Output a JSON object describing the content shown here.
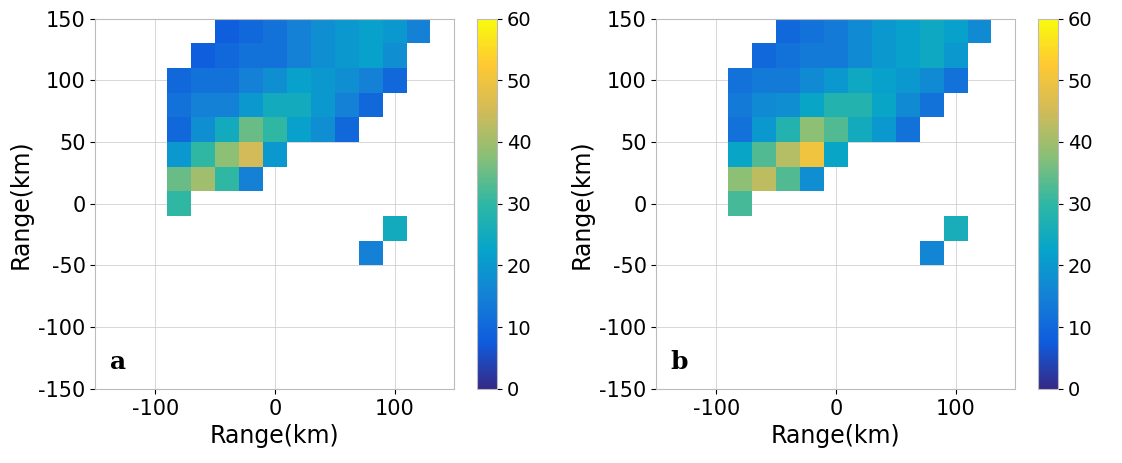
{
  "chart_data": [
    {
      "type": "heatmap",
      "annotation": "a",
      "xlabel": "Range(km)",
      "ylabel": "Range(km)",
      "xlim": [
        -150,
        150
      ],
      "ylim": [
        -150,
        150
      ],
      "xticks": [
        -100,
        0,
        100
      ],
      "yticks": [
        -150,
        -100,
        -50,
        0,
        50,
        100,
        150
      ],
      "grid": true,
      "x": [
        -140,
        -120,
        -100,
        -80,
        -60,
        -40,
        -20,
        0,
        20,
        40,
        60,
        80,
        100,
        120,
        140
      ],
      "y": [
        140,
        120,
        100,
        80,
        60,
        40,
        20,
        0,
        -20,
        -40,
        -60,
        -80,
        -100,
        -120,
        -140
      ],
      "cells": [
        [
          null,
          null,
          null,
          null,
          null,
          8,
          10,
          12,
          15,
          18,
          20,
          22,
          20,
          15,
          null
        ],
        [
          null,
          null,
          null,
          null,
          8,
          10,
          12,
          12,
          15,
          18,
          20,
          22,
          18,
          null,
          null
        ],
        [
          null,
          null,
          null,
          10,
          12,
          12,
          15,
          18,
          22,
          20,
          18,
          15,
          10,
          null,
          null
        ],
        [
          null,
          null,
          null,
          12,
          15,
          15,
          20,
          25,
          25,
          20,
          15,
          10,
          null,
          null,
          null
        ],
        [
          null,
          null,
          null,
          10,
          18,
          25,
          35,
          30,
          22,
          18,
          10,
          null,
          null,
          null,
          null
        ],
        [
          null,
          null,
          null,
          20,
          30,
          38,
          45,
          20,
          null,
          null,
          null,
          null,
          null,
          null,
          null
        ],
        [
          null,
          null,
          null,
          35,
          40,
          30,
          15,
          null,
          null,
          null,
          null,
          null,
          null,
          null,
          null
        ],
        [
          null,
          null,
          null,
          30,
          null,
          null,
          null,
          null,
          null,
          null,
          null,
          null,
          null,
          null,
          null
        ],
        [
          null,
          null,
          null,
          null,
          null,
          null,
          null,
          null,
          null,
          null,
          null,
          null,
          25,
          null,
          null
        ],
        [
          null,
          null,
          null,
          null,
          null,
          null,
          null,
          null,
          null,
          null,
          null,
          15,
          null,
          null,
          null
        ],
        [
          null,
          null,
          null,
          null,
          null,
          null,
          null,
          null,
          null,
          null,
          null,
          null,
          null,
          null,
          null
        ],
        [
          null,
          null,
          null,
          null,
          null,
          null,
          null,
          null,
          null,
          null,
          null,
          null,
          null,
          null,
          null
        ],
        [
          null,
          null,
          null,
          null,
          null,
          null,
          null,
          null,
          null,
          null,
          null,
          null,
          null,
          null,
          null
        ],
        [
          null,
          null,
          null,
          null,
          null,
          null,
          null,
          null,
          null,
          null,
          null,
          null,
          null,
          null,
          null
        ],
        [
          null,
          null,
          null,
          null,
          null,
          null,
          null,
          null,
          null,
          null,
          null,
          null,
          null,
          null,
          null
        ]
      ],
      "colorbar_range": [
        0,
        60
      ],
      "colorbar_ticks": [
        0,
        10,
        20,
        30,
        40,
        50,
        60
      ]
    },
    {
      "type": "heatmap",
      "annotation": "b",
      "xlabel": "Range(km)",
      "ylabel": "Range(km)",
      "xlim": [
        -150,
        150
      ],
      "ylim": [
        -150,
        150
      ],
      "xticks": [
        -100,
        0,
        100
      ],
      "yticks": [
        -150,
        -100,
        -50,
        0,
        50,
        100,
        150
      ],
      "grid": true,
      "x": [
        -140,
        -120,
        -100,
        -80,
        -60,
        -40,
        -20,
        0,
        20,
        40,
        60,
        80,
        100,
        120,
        140
      ],
      "y": [
        140,
        120,
        100,
        80,
        60,
        40,
        20,
        0,
        -20,
        -40,
        -60,
        -80,
        -100,
        -120,
        -140
      ],
      "cells": [
        [
          null,
          null,
          null,
          null,
          null,
          10,
          12,
          14,
          17,
          20,
          22,
          24,
          22,
          17,
          null
        ],
        [
          null,
          null,
          null,
          null,
          10,
          12,
          14,
          14,
          17,
          20,
          22,
          24,
          20,
          null,
          null
        ],
        [
          null,
          null,
          null,
          12,
          14,
          14,
          17,
          20,
          24,
          22,
          20,
          17,
          12,
          null,
          null
        ],
        [
          null,
          null,
          null,
          14,
          17,
          18,
          23,
          28,
          28,
          23,
          17,
          12,
          null,
          null,
          null
        ],
        [
          null,
          null,
          null,
          12,
          20,
          28,
          38,
          33,
          25,
          20,
          12,
          null,
          null,
          null,
          null
        ],
        [
          null,
          null,
          null,
          23,
          33,
          42,
          50,
          23,
          null,
          null,
          null,
          null,
          null,
          null,
          null
        ],
        [
          null,
          null,
          null,
          38,
          43,
          33,
          18,
          null,
          null,
          null,
          null,
          null,
          null,
          null,
          null
        ],
        [
          null,
          null,
          null,
          32,
          null,
          null,
          null,
          null,
          null,
          null,
          null,
          null,
          null,
          null,
          null
        ],
        [
          null,
          null,
          null,
          null,
          null,
          null,
          null,
          null,
          null,
          null,
          null,
          null,
          26,
          null,
          null
        ],
        [
          null,
          null,
          null,
          null,
          null,
          null,
          null,
          null,
          null,
          null,
          null,
          16,
          null,
          null,
          null
        ],
        [
          null,
          null,
          null,
          null,
          null,
          null,
          null,
          null,
          null,
          null,
          null,
          null,
          null,
          null,
          null
        ],
        [
          null,
          null,
          null,
          null,
          null,
          null,
          null,
          null,
          null,
          null,
          null,
          null,
          null,
          null,
          null
        ],
        [
          null,
          null,
          null,
          null,
          null,
          null,
          null,
          null,
          null,
          null,
          null,
          null,
          null,
          null,
          null
        ],
        [
          null,
          null,
          null,
          null,
          null,
          null,
          null,
          null,
          null,
          null,
          null,
          null,
          null,
          null,
          null
        ],
        [
          null,
          null,
          null,
          null,
          null,
          null,
          null,
          null,
          null,
          null,
          null,
          null,
          null,
          null,
          null
        ]
      ],
      "colorbar_range": [
        0,
        60
      ],
      "colorbar_ticks": [
        0,
        10,
        20,
        30,
        40,
        50,
        60
      ]
    }
  ]
}
